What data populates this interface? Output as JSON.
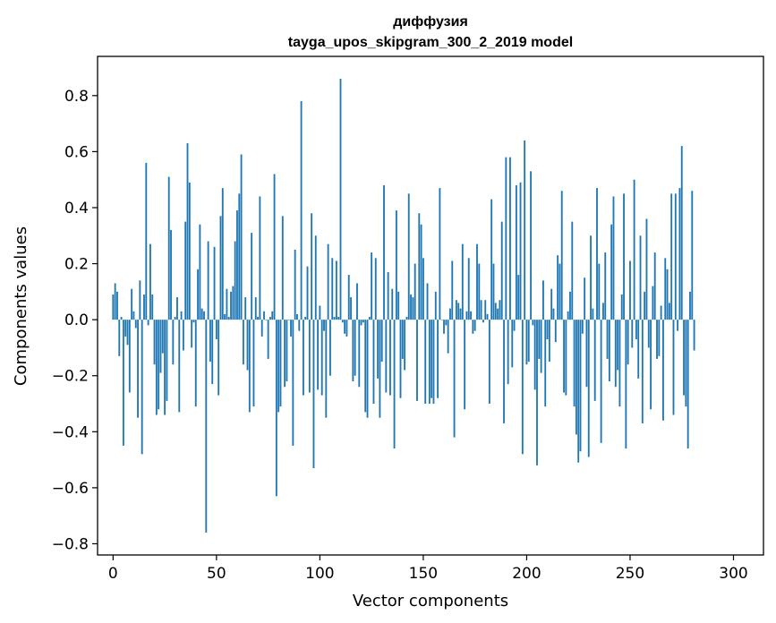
{
  "chart_data": {
    "type": "bar",
    "title": "диффузия",
    "subtitle": "tayga_upos_skipgram_300_2_2019 model",
    "xlabel": "Vector components",
    "ylabel": "Components values",
    "xlim": [
      -7.5,
      314.5
    ],
    "ylim": [
      -0.84,
      0.94
    ],
    "x_ticks": [
      0,
      50,
      100,
      150,
      200,
      250,
      300
    ],
    "y_ticks": [
      -0.8,
      -0.6,
      -0.4,
      -0.2,
      0.0,
      0.2,
      0.4,
      0.6,
      0.8
    ],
    "x_tick_labels": [
      "0",
      "50",
      "100",
      "150",
      "200",
      "250",
      "300"
    ],
    "y_tick_labels": [
      "−0.8",
      "−0.6",
      "−0.4",
      "−0.2",
      "0.0",
      "0.2",
      "0.4",
      "0.6",
      "0.8"
    ],
    "bar_color": "#1f77b4",
    "grid": false,
    "values": [
      0.09,
      0.13,
      0.1,
      -0.13,
      0.01,
      -0.45,
      -0.06,
      -0.09,
      -0.26,
      0.11,
      0.03,
      -0.03,
      -0.35,
      0.14,
      -0.48,
      0.09,
      0.56,
      -0.02,
      0.27,
      0.09,
      -0.16,
      -0.34,
      -0.32,
      -0.19,
      -0.12,
      -0.34,
      -0.29,
      0.51,
      0.32,
      -0.16,
      0.01,
      0.08,
      -0.33,
      0.03,
      -0.11,
      0.35,
      0.63,
      0.49,
      -0.1,
      -0.01,
      -0.31,
      0.18,
      0.34,
      0.04,
      0.03,
      -0.76,
      0.28,
      -0.15,
      -0.23,
      0.26,
      -0.07,
      -0.27,
      0.37,
      0.47,
      0.02,
      0.11,
      0.01,
      0.1,
      0.12,
      0.28,
      0.39,
      0.45,
      0.59,
      -0.16,
      0.08,
      -0.18,
      -0.33,
      0.31,
      -0.31,
      0.08,
      0.01,
      0.44,
      -0.06,
      0.03,
      0.0,
      -0.14,
      0.01,
      0.03,
      0.52,
      -0.63,
      -0.33,
      -0.31,
      0.37,
      -0.24,
      -0.22,
      0.0,
      -0.06,
      -0.45,
      0.25,
      0.02,
      -0.04,
      0.78,
      -0.27,
      0.01,
      0.19,
      -0.26,
      0.38,
      -0.53,
      0.3,
      -0.25,
      0.05,
      -0.27,
      -0.04,
      -0.35,
      0.27,
      -0.2,
      0.22,
      0.01,
      0.21,
      0.01,
      0.86,
      -0.01,
      -0.05,
      -0.06,
      0.16,
      0.08,
      -0.22,
      -0.2,
      0.13,
      -0.24,
      -0.02,
      -0.01,
      -0.33,
      -0.35,
      0.01,
      0.24,
      -0.3,
      0.22,
      -0.21,
      -0.35,
      -0.15,
      0.48,
      -0.26,
      0.17,
      -0.27,
      0.11,
      -0.46,
      0.39,
      0.1,
      -0.28,
      -0.14,
      -0.18,
      0.01,
      0.45,
      0.09,
      0.08,
      0.2,
      -0.29,
      0.38,
      0.34,
      0.22,
      -0.3,
      0.13,
      -0.3,
      -0.28,
      -0.3,
      0.1,
      -0.28,
      0.47,
      0.0,
      -0.05,
      -0.02,
      -0.12,
      0.04,
      0.21,
      -0.42,
      0.07,
      0.06,
      0.04,
      0.27,
      -0.32,
      0.03,
      0.22,
      0.03,
      -0.05,
      -0.04,
      0.27,
      0.2,
      0.07,
      -0.01,
      0.07,
      0.02,
      -0.3,
      0.43,
      0.2,
      0.06,
      0.04,
      0.07,
      0.35,
      -0.37,
      0.58,
      -0.23,
      0.58,
      -0.17,
      -0.04,
      0.48,
      0.16,
      0.49,
      -0.48,
      0.64,
      -0.16,
      -0.15,
      0.53,
      -0.02,
      -0.25,
      -0.52,
      -0.14,
      -0.19,
      0.14,
      -0.31,
      -0.07,
      -0.15,
      0.11,
      0.04,
      -0.08,
      0.23,
      0.2,
      0.46,
      -0.26,
      -0.27,
      0.03,
      0.1,
      0.35,
      -0.31,
      -0.41,
      -0.51,
      -0.47,
      -0.05,
      0.15,
      -0.24,
      -0.49,
      0.3,
      0.04,
      -0.29,
      0.47,
      0.2,
      -0.44,
      0.06,
      0.24,
      -0.14,
      -0.22,
      0.34,
      0.44,
      -0.24,
      -0.18,
      -0.31,
      0.09,
      0.45,
      -0.46,
      -0.16,
      0.21,
      -0.1,
      0.5,
      -0.07,
      -0.21,
      0.3,
      -0.37,
      0.1,
      0.36,
      -0.1,
      -0.32,
      0.12,
      0.24,
      -0.14,
      -0.13,
      0.05,
      -0.36,
      0.22,
      0.18,
      0.06,
      0.45,
      -0.34,
      0.45,
      -0.04,
      0.47,
      0.62,
      -0.27,
      -0.31,
      -0.46,
      0.1,
      0.46,
      -0.11
    ]
  }
}
